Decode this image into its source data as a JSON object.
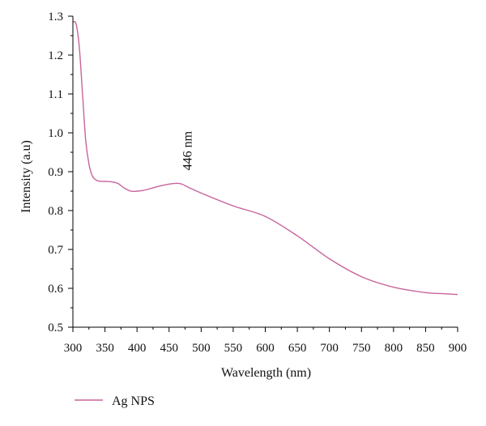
{
  "chart_data": {
    "type": "line",
    "title": "",
    "xlabel": "Wavelength (nm)",
    "ylabel": "Intensity (a.u)",
    "xlim": [
      300,
      900
    ],
    "ylim": [
      0.5,
      1.3
    ],
    "x_ticks": [
      300,
      350,
      400,
      450,
      500,
      550,
      600,
      650,
      700,
      750,
      800,
      850,
      900
    ],
    "x_tick_labels": [
      "300",
      "350",
      "400",
      "450",
      "500",
      "550",
      "600",
      "650",
      "700",
      "750",
      "800",
      "850",
      "900"
    ],
    "y_ticks": [
      0.5,
      0.6,
      0.7,
      0.8,
      0.9,
      1.0,
      1.1,
      1.2,
      1.3
    ],
    "y_tick_labels": [
      "0.5",
      "0.6",
      "0.7",
      "0.8",
      "0.9",
      "1.0",
      "1.1",
      "1.2",
      "1.3"
    ],
    "grid": false,
    "legend_position": "bottom-left",
    "annotation": {
      "text": "446 nm",
      "x": 470,
      "y": 0.92
    },
    "series": [
      {
        "name": "Ag NPS",
        "color": "#c8649b",
        "x": [
          300,
          305,
          310,
          315,
          320,
          325,
          330,
          335,
          340,
          350,
          360,
          370,
          380,
          390,
          400,
          410,
          420,
          440,
          460,
          470,
          480,
          500,
          550,
          600,
          650,
          700,
          750,
          800,
          850,
          880,
          900
        ],
        "y": [
          1.285,
          1.28,
          1.22,
          1.1,
          0.98,
          0.92,
          0.89,
          0.88,
          0.876,
          0.875,
          0.874,
          0.87,
          0.858,
          0.85,
          0.85,
          0.852,
          0.856,
          0.865,
          0.87,
          0.868,
          0.86,
          0.845,
          0.812,
          0.785,
          0.735,
          0.676,
          0.63,
          0.603,
          0.589,
          0.586,
          0.584
        ]
      }
    ]
  }
}
